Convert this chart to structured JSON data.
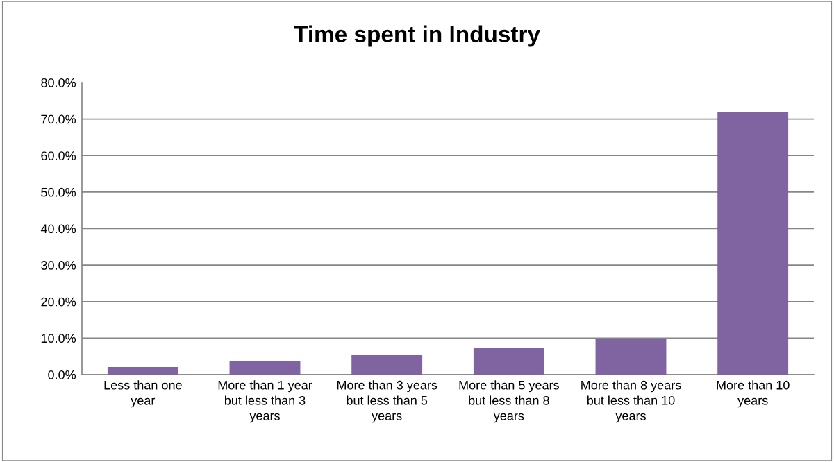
{
  "chart_data": {
    "type": "bar",
    "title": "Time spent in Industry",
    "categories": [
      "Less than one year",
      "More than 1 year but less than 3 years",
      "More than 3 years but less than 5 years",
      "More than 5 years but less than 8 years",
      "More than 8 years but less than 10 years",
      "More than 10 years"
    ],
    "values": [
      2.1,
      3.6,
      5.3,
      7.3,
      9.8,
      71.9
    ],
    "color": "#8064a2",
    "ylim": [
      0,
      80
    ],
    "yticks": [
      {
        "value": 0,
        "label": "0.0%"
      },
      {
        "value": 10,
        "label": "10.0%"
      },
      {
        "value": 20,
        "label": "20.0%"
      },
      {
        "value": 30,
        "label": "30.0%"
      },
      {
        "value": 40,
        "label": "40.0%"
      },
      {
        "value": 50,
        "label": "50.0%"
      },
      {
        "value": 60,
        "label": "60.0%"
      },
      {
        "value": 70,
        "label": "70.0%"
      },
      {
        "value": 80,
        "label": "80.0%"
      }
    ],
    "grid": "y",
    "legend": false
  }
}
